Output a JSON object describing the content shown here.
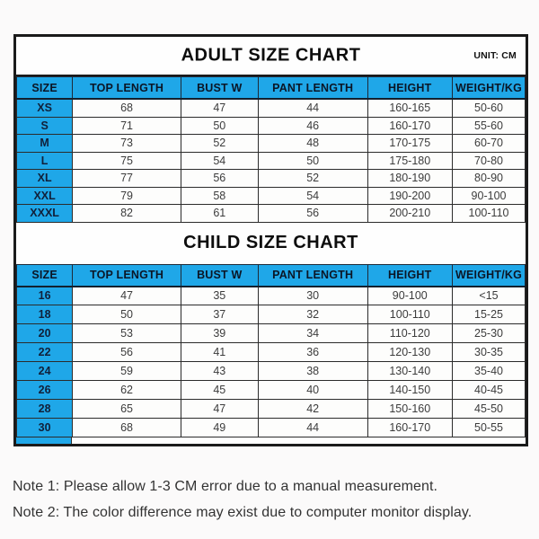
{
  "colors": {
    "header_blue": "#1fa7e8",
    "border_dark": "#1a1a1a",
    "page_background": "#fbfafa"
  },
  "chart_data": [
    {
      "type": "table",
      "title": "ADULT SIZE CHART",
      "unit": "UNIT: CM",
      "columns": [
        "SIZE",
        "TOP LENGTH",
        "BUST W",
        "PANT LENGTH",
        "HEIGHT",
        "WEIGHT/KG"
      ],
      "rows": [
        [
          "XS",
          "68",
          "47",
          "44",
          "160-165",
          "50-60"
        ],
        [
          "S",
          "71",
          "50",
          "46",
          "160-170",
          "55-60"
        ],
        [
          "M",
          "73",
          "52",
          "48",
          "170-175",
          "60-70"
        ],
        [
          "L",
          "75",
          "54",
          "50",
          "175-180",
          "70-80"
        ],
        [
          "XL",
          "77",
          "56",
          "52",
          "180-190",
          "80-90"
        ],
        [
          "XXL",
          "79",
          "58",
          "54",
          "190-200",
          "90-100"
        ],
        [
          "XXXL",
          "82",
          "61",
          "56",
          "200-210",
          "100-110"
        ]
      ]
    },
    {
      "type": "table",
      "title": "CHILD SIZE CHART",
      "columns": [
        "SIZE",
        "TOP LENGTH",
        "BUST W",
        "PANT LENGTH",
        "HEIGHT",
        "WEIGHT/KG"
      ],
      "rows": [
        [
          "16",
          "47",
          "35",
          "30",
          "90-100",
          "<15"
        ],
        [
          "18",
          "50",
          "37",
          "32",
          "100-110",
          "15-25"
        ],
        [
          "20",
          "53",
          "39",
          "34",
          "110-120",
          "25-30"
        ],
        [
          "22",
          "56",
          "41",
          "36",
          "120-130",
          "30-35"
        ],
        [
          "24",
          "59",
          "43",
          "38",
          "130-140",
          "35-40"
        ],
        [
          "26",
          "62",
          "45",
          "40",
          "140-150",
          "40-45"
        ],
        [
          "28",
          "65",
          "47",
          "42",
          "150-160",
          "45-50"
        ],
        [
          "30",
          "68",
          "49",
          "44",
          "160-170",
          "50-55"
        ]
      ]
    }
  ],
  "notes": [
    "Note 1: Please allow 1-3 CM error due to a manual measurement.",
    "Note 2: The color difference may exist due to computer monitor display."
  ]
}
